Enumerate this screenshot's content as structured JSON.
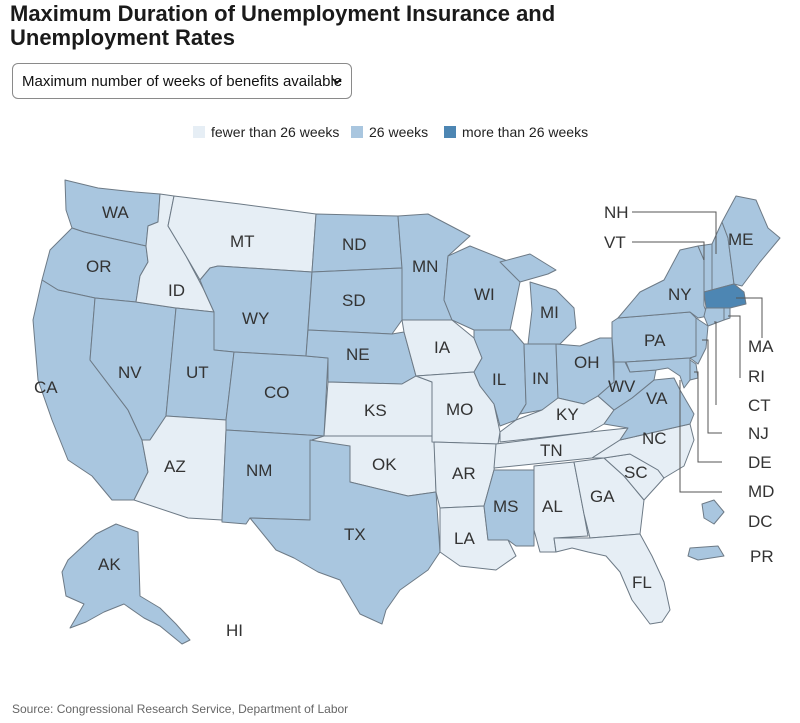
{
  "title": "Maximum Duration of Unemployment Insurance and Unemployment Rates",
  "dropdown": {
    "selected": "Maximum number of weeks of benefits available",
    "icon": "chevron-down-icon"
  },
  "legend": [
    {
      "label": "fewer than 26 weeks",
      "color": "#e6eef5"
    },
    {
      "label": "26 weeks",
      "color": "#a9c6df"
    },
    {
      "label": "more than 26 weeks",
      "color": "#4d86b3"
    }
  ],
  "states": {
    "WA": {
      "label": "WA",
      "category": "26 weeks"
    },
    "OR": {
      "label": "OR",
      "category": "26 weeks"
    },
    "CA": {
      "label": "CA",
      "category": "26 weeks"
    },
    "NV": {
      "label": "NV",
      "category": "26 weeks"
    },
    "ID": {
      "label": "ID",
      "category": "fewer than 26 weeks"
    },
    "MT": {
      "label": "MT",
      "category": "fewer than 26 weeks"
    },
    "WY": {
      "label": "WY",
      "category": "26 weeks"
    },
    "UT": {
      "label": "UT",
      "category": "26 weeks"
    },
    "CO": {
      "label": "CO",
      "category": "26 weeks"
    },
    "AZ": {
      "label": "AZ",
      "category": "fewer than 26 weeks"
    },
    "NM": {
      "label": "NM",
      "category": "26 weeks"
    },
    "ND": {
      "label": "ND",
      "category": "26 weeks"
    },
    "SD": {
      "label": "SD",
      "category": "26 weeks"
    },
    "NE": {
      "label": "NE",
      "category": "26 weeks"
    },
    "KS": {
      "label": "KS",
      "category": "fewer than 26 weeks"
    },
    "OK": {
      "label": "OK",
      "category": "fewer than 26 weeks"
    },
    "TX": {
      "label": "TX",
      "category": "26 weeks"
    },
    "MN": {
      "label": "MN",
      "category": "26 weeks"
    },
    "IA": {
      "label": "IA",
      "category": "fewer than 26 weeks"
    },
    "MO": {
      "label": "MO",
      "category": "fewer than 26 weeks"
    },
    "AR": {
      "label": "AR",
      "category": "fewer than 26 weeks"
    },
    "LA": {
      "label": "LA",
      "category": "fewer than 26 weeks"
    },
    "WI": {
      "label": "WI",
      "category": "26 weeks"
    },
    "IL": {
      "label": "IL",
      "category": "26 weeks"
    },
    "MS": {
      "label": "MS",
      "category": "26 weeks"
    },
    "MI": {
      "label": "MI",
      "category": "26 weeks"
    },
    "IN": {
      "label": "IN",
      "category": "26 weeks"
    },
    "OH": {
      "label": "OH",
      "category": "26 weeks"
    },
    "KY": {
      "label": "KY",
      "category": "fewer than 26 weeks"
    },
    "TN": {
      "label": "TN",
      "category": "fewer than 26 weeks"
    },
    "AL": {
      "label": "AL",
      "category": "fewer than 26 weeks"
    },
    "GA": {
      "label": "GA",
      "category": "fewer than 26 weeks"
    },
    "FL": {
      "label": "FL",
      "category": "fewer than 26 weeks"
    },
    "SC": {
      "label": "SC",
      "category": "fewer than 26 weeks"
    },
    "NC": {
      "label": "NC",
      "category": "fewer than 26 weeks"
    },
    "VA": {
      "label": "VA",
      "category": "26 weeks"
    },
    "WV": {
      "label": "WV",
      "category": "26 weeks"
    },
    "PA": {
      "label": "PA",
      "category": "26 weeks"
    },
    "NY": {
      "label": "NY",
      "category": "26 weeks"
    },
    "VT": {
      "label": "VT",
      "category": "26 weeks"
    },
    "NH": {
      "label": "NH",
      "category": "26 weeks"
    },
    "ME": {
      "label": "ME",
      "category": "26 weeks"
    },
    "MA": {
      "label": "MA",
      "category": "more than 26 weeks"
    },
    "RI": {
      "label": "RI",
      "category": "26 weeks"
    },
    "CT": {
      "label": "CT",
      "category": "26 weeks"
    },
    "NJ": {
      "label": "NJ",
      "category": "26 weeks"
    },
    "DE": {
      "label": "DE",
      "category": "26 weeks"
    },
    "MD": {
      "label": "MD",
      "category": "26 weeks"
    },
    "DC": {
      "label": "DC",
      "category": "26 weeks"
    },
    "PR": {
      "label": "PR",
      "category": "26 weeks"
    },
    "AK": {
      "label": "AK",
      "category": "26 weeks"
    },
    "HI": {
      "label": "HI",
      "category": ""
    }
  },
  "source": "Source: Congressional Research Service, Department of Labor"
}
